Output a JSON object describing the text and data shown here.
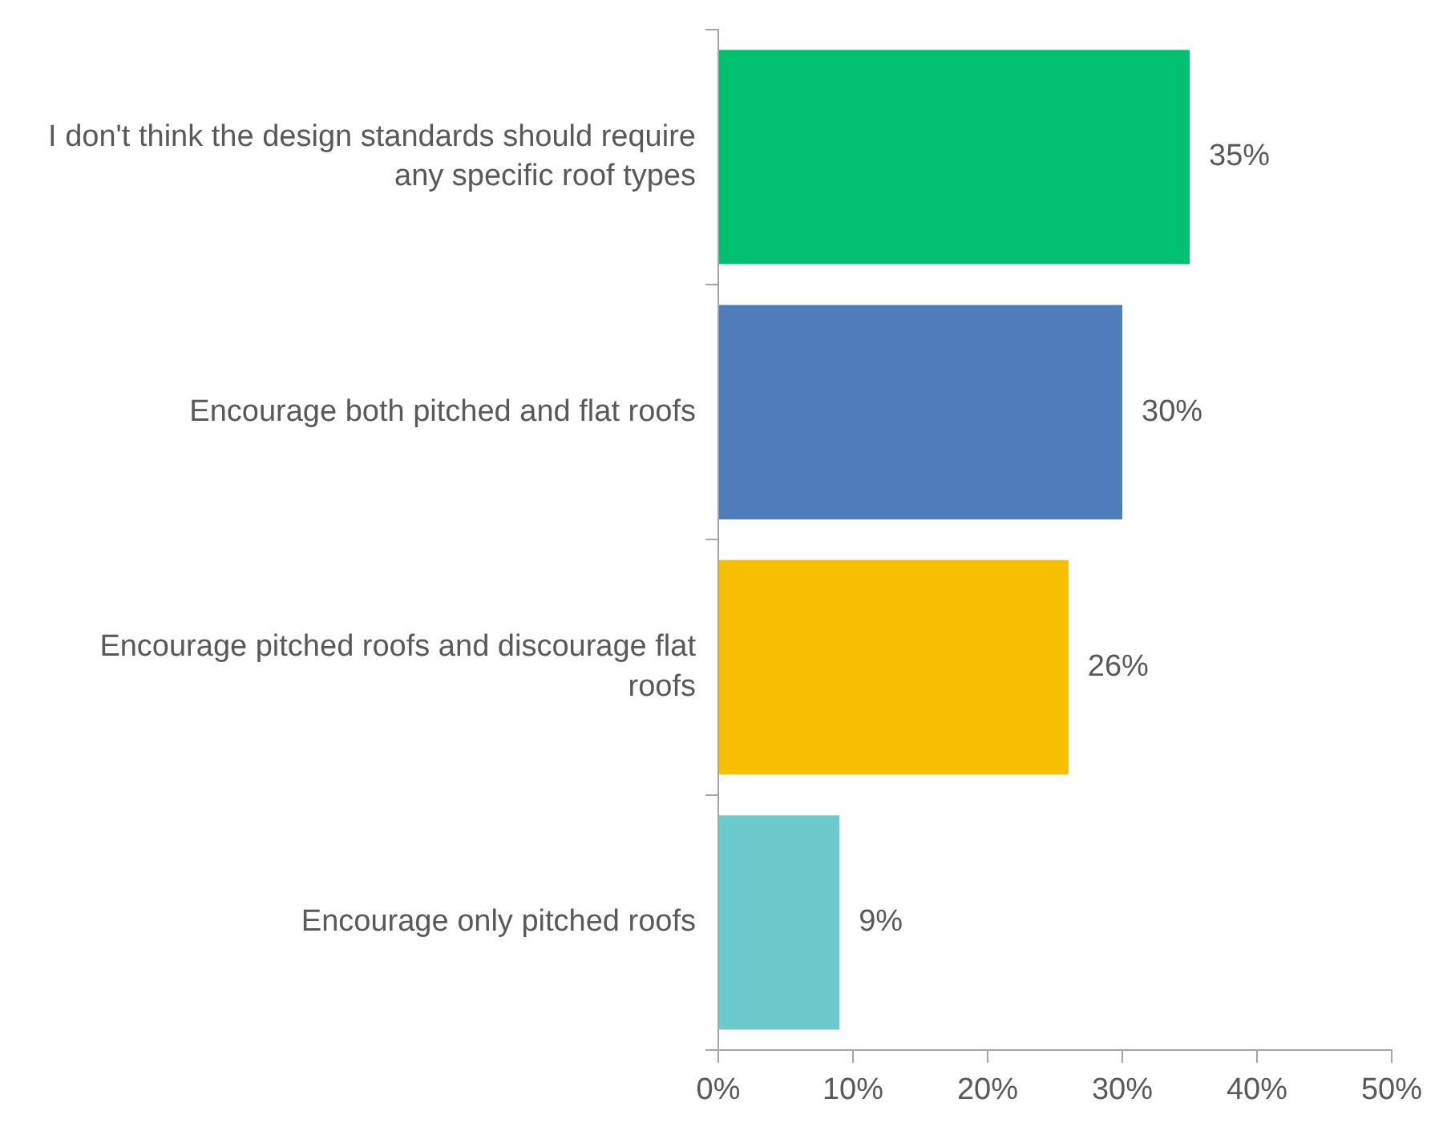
{
  "chart_data": {
    "type": "bar",
    "orientation": "horizontal",
    "categories": [
      "I don't think the design standards should require any specific roof types",
      "Encourage both pitched and flat roofs",
      "Encourage pitched roofs and discourage flat roofs",
      "Encourage only pitched roofs"
    ],
    "values": [
      35,
      30,
      26,
      9
    ],
    "colors": [
      "#00c072",
      "#4f7dbb",
      "#f8be00",
      "#6cc9cc"
    ],
    "value_labels": [
      "35%",
      "30%",
      "26%",
      "9%"
    ],
    "xlim": [
      0,
      50
    ],
    "xticks": [
      {
        "value": 0,
        "label": "0%"
      },
      {
        "value": 10,
        "label": "10%"
      },
      {
        "value": 20,
        "label": "20%"
      },
      {
        "value": 30,
        "label": "30%"
      },
      {
        "value": 40,
        "label": "40%"
      },
      {
        "value": 50,
        "label": "50%"
      }
    ],
    "grid": false,
    "legend": false
  }
}
